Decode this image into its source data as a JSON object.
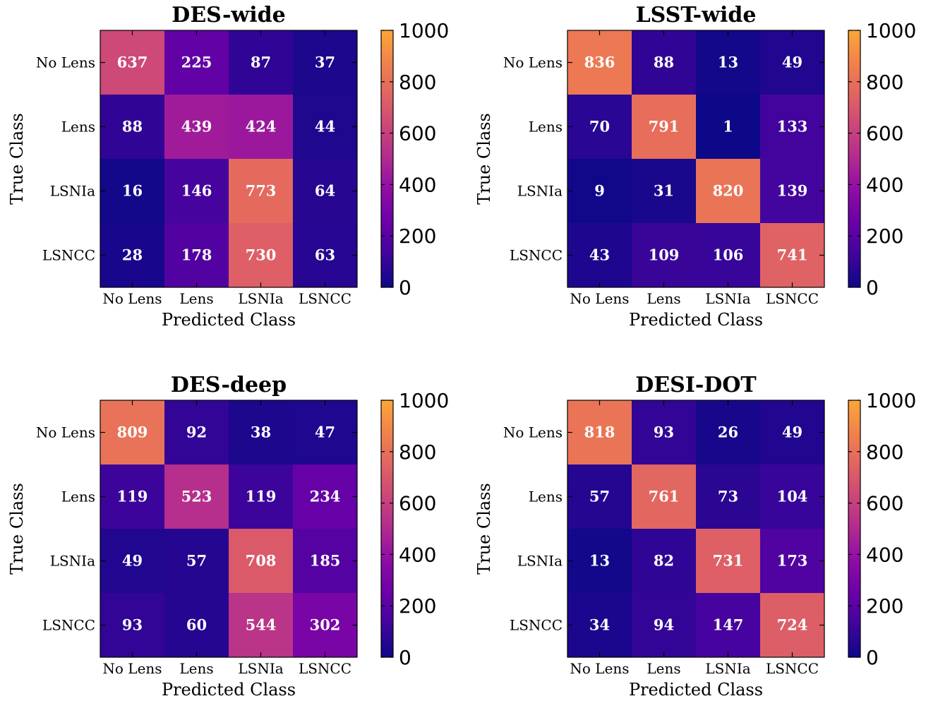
{
  "chart_data": [
    {
      "type": "heatmap",
      "title": "DES-wide",
      "xlabel": "Predicted Class",
      "ylabel": "True Class",
      "x_categories": [
        "No Lens",
        "Lens",
        "LSNIa",
        "LSNCC"
      ],
      "y_categories": [
        "No Lens",
        "Lens",
        "LSNIa",
        "LSNCC"
      ],
      "values": [
        [
          637,
          225,
          87,
          37
        ],
        [
          88,
          439,
          424,
          44
        ],
        [
          16,
          146,
          773,
          64
        ],
        [
          28,
          178,
          730,
          63
        ]
      ],
      "colorbar": {
        "range": [
          0,
          1000
        ],
        "ticks": [
          "0",
          "200",
          "400",
          "600",
          "800",
          "1000"
        ],
        "colormap": "plasma"
      }
    },
    {
      "type": "heatmap",
      "title": "LSST-wide",
      "xlabel": "Predicted Class",
      "ylabel": "True Class",
      "x_categories": [
        "No Lens",
        "Lens",
        "LSNIa",
        "LSNCC"
      ],
      "y_categories": [
        "No Lens",
        "Lens",
        "LSNIa",
        "LSNCC"
      ],
      "values": [
        [
          836,
          88,
          13,
          49
        ],
        [
          70,
          791,
          1,
          133
        ],
        [
          9,
          31,
          820,
          139
        ],
        [
          43,
          109,
          106,
          741
        ]
      ],
      "colorbar": {
        "range": [
          0,
          1000
        ],
        "ticks": [
          "0",
          "200",
          "400",
          "600",
          "800",
          "1000"
        ],
        "colormap": "plasma"
      }
    },
    {
      "type": "heatmap",
      "title": "DES-deep",
      "xlabel": "Predicted Class",
      "ylabel": "True Class",
      "x_categories": [
        "No Lens",
        "Lens",
        "LSNIa",
        "LSNCC"
      ],
      "y_categories": [
        "No Lens",
        "Lens",
        "LSNIa",
        "LSNCC"
      ],
      "values": [
        [
          809,
          92,
          38,
          47
        ],
        [
          119,
          523,
          119,
          234
        ],
        [
          49,
          57,
          708,
          185
        ],
        [
          93,
          60,
          544,
          302
        ]
      ],
      "colorbar": {
        "range": [
          0,
          1000
        ],
        "ticks": [
          "0",
          "200",
          "400",
          "600",
          "800",
          "1000"
        ],
        "colormap": "plasma"
      }
    },
    {
      "type": "heatmap",
      "title": "DESI-DOT",
      "xlabel": "Predicted Class",
      "ylabel": "True Class",
      "x_categories": [
        "No Lens",
        "Lens",
        "LSNIa",
        "LSNCC"
      ],
      "y_categories": [
        "No Lens",
        "Lens",
        "LSNIa",
        "LSNCC"
      ],
      "values": [
        [
          818,
          93,
          26,
          49
        ],
        [
          57,
          761,
          73,
          104
        ],
        [
          13,
          82,
          731,
          173
        ],
        [
          34,
          94,
          147,
          724
        ]
      ],
      "colorbar": {
        "range": [
          0,
          1000
        ],
        "ticks": [
          "0",
          "200",
          "400",
          "600",
          "800",
          "1000"
        ],
        "colormap": "plasma"
      }
    }
  ]
}
